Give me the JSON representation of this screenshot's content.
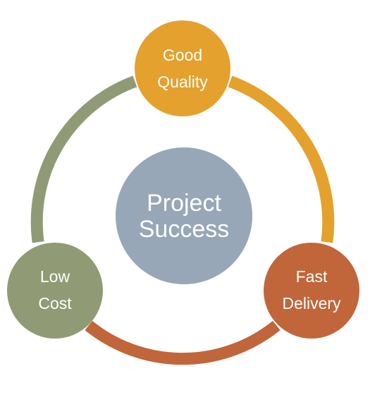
{
  "diagram": {
    "center": {
      "lines": [
        "Project",
        "Success"
      ],
      "color": "#97a7b8"
    },
    "nodes": [
      {
        "id": "good-quality",
        "lines": [
          "Good",
          "Quality"
        ],
        "color": "#e4a12d"
      },
      {
        "id": "fast-delivery",
        "lines": [
          "Fast",
          "Delivery"
        ],
        "color": "#c0663a"
      },
      {
        "id": "low-cost",
        "lines": [
          "Low",
          "Cost"
        ],
        "color": "#909b76"
      }
    ],
    "arcs": [
      {
        "from": "good-quality",
        "to": "fast-delivery",
        "color": "#e4a12d"
      },
      {
        "from": "fast-delivery",
        "to": "low-cost",
        "color": "#c0663a"
      },
      {
        "from": "low-cost",
        "to": "good-quality",
        "color": "#909b76"
      }
    ]
  }
}
